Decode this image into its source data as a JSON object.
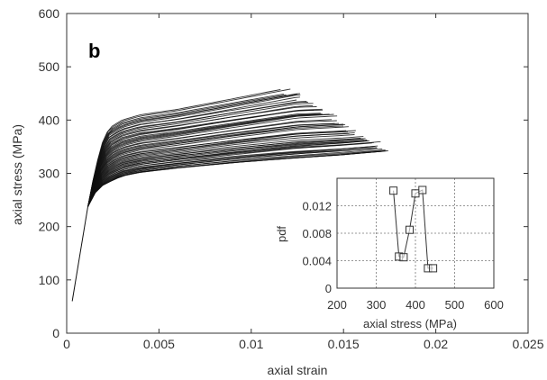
{
  "panel_label": "b",
  "chart_data": [
    {
      "type": "line",
      "xlabel": "axial strain",
      "ylabel": "axial stress (MPa)",
      "xlim": [
        0,
        0.025
      ],
      "ylim": [
        0,
        600
      ],
      "x_ticks": [
        0,
        0.005,
        0.01,
        0.015,
        0.02,
        0.025
      ],
      "x_tick_labels": [
        "0",
        "0.005",
        "0.01",
        "0.015",
        "0.02",
        "0.025"
      ],
      "y_ticks": [
        0,
        100,
        200,
        300,
        400,
        500,
        600
      ],
      "y_tick_labels": [
        "0",
        "100",
        "200",
        "300",
        "400",
        "500",
        "600"
      ],
      "grid": false,
      "envelope": {
        "elastic": [
          [
            0.0003,
            60
          ],
          [
            0.00115,
            238
          ]
        ],
        "lower_bound": [
          [
            0.00115,
            238
          ],
          [
            0.0015,
            262
          ],
          [
            0.002,
            279
          ],
          [
            0.003,
            295
          ],
          [
            0.004,
            302
          ],
          [
            0.006,
            310
          ],
          [
            0.009,
            320
          ],
          [
            0.012,
            328
          ],
          [
            0.015,
            335
          ],
          [
            0.0173,
            342
          ]
        ],
        "upper_bound": [
          [
            0.00115,
            238
          ],
          [
            0.0015,
            300
          ],
          [
            0.0019,
            355
          ],
          [
            0.0023,
            385
          ],
          [
            0.003,
            400
          ],
          [
            0.004,
            410
          ],
          [
            0.006,
            420
          ],
          [
            0.009,
            440
          ],
          [
            0.012,
            460
          ]
        ]
      },
      "curve_count": 60,
      "curve_strength_range": [
        305,
        460
      ],
      "failure_strain_range": [
        0.0118,
        0.0173
      ],
      "color": "#111111"
    },
    {
      "type": "line",
      "inset": true,
      "xlabel": "axial stress (MPa)",
      "ylabel": "pdf",
      "xlim": [
        200,
        600
      ],
      "ylim": [
        0,
        0.016
      ],
      "x_ticks": [
        200,
        300,
        400,
        500,
        600
      ],
      "x_tick_labels": [
        "200",
        "300",
        "400",
        "500",
        "600"
      ],
      "y_ticks": [
        0,
        0.004,
        0.008,
        0.012
      ],
      "y_tick_labels": [
        "0",
        "0.004",
        "0.008",
        "0.012"
      ],
      "grid": true,
      "marker": "square",
      "series": [
        {
          "x": [
            344,
            358,
            370,
            385,
            400,
            418,
            432,
            445
          ],
          "y": [
            0.0142,
            0.0046,
            0.0045,
            0.0085,
            0.0138,
            0.0143,
            0.0029,
            0.0029
          ]
        }
      ]
    }
  ]
}
